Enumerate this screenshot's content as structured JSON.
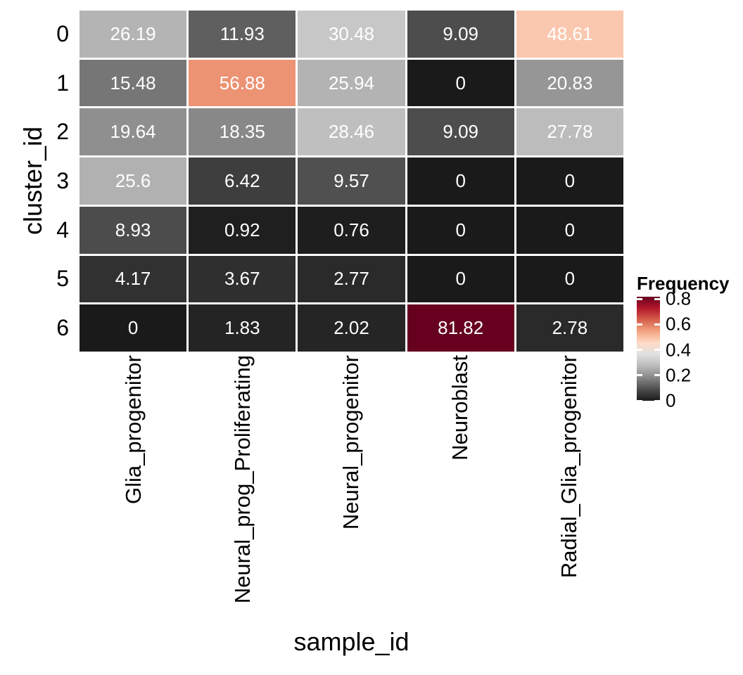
{
  "chart_data": {
    "type": "heatmap",
    "xlabel": "sample_id",
    "ylabel": "cluster_id",
    "columns": [
      "Glia_progenitor",
      "Neural_prog_Proliferating",
      "Neural_progenitor",
      "Neuroblast",
      "Radial_Glia_progenitor"
    ],
    "rows": [
      "0",
      "1",
      "2",
      "3",
      "4",
      "5",
      "6"
    ],
    "values": [
      [
        26.19,
        11.93,
        30.48,
        9.09,
        48.61
      ],
      [
        15.48,
        56.88,
        25.94,
        0,
        20.83
      ],
      [
        19.64,
        18.35,
        28.46,
        9.09,
        27.78
      ],
      [
        25.6,
        6.42,
        9.57,
        0,
        0
      ],
      [
        8.93,
        0.92,
        0.76,
        0,
        0
      ],
      [
        4.17,
        3.67,
        2.77,
        0,
        0
      ],
      [
        0,
        1.83,
        2.02,
        81.82,
        2.78
      ]
    ],
    "legend": {
      "title": "Frequency",
      "tick_labels": [
        "0.8",
        "0.6",
        "0.4",
        "0.2",
        "0"
      ],
      "tick_values": [
        0.8,
        0.6,
        0.4,
        0.2,
        0
      ],
      "domain": [
        0,
        0.8182
      ],
      "position": "right"
    },
    "palette": [
      "#1A1A1A",
      "#4D4D4D",
      "#878787",
      "#BABABA",
      "#E0E0E0",
      "#FDDBC7",
      "#F4A582",
      "#D6604D",
      "#B2182B",
      "#67001F"
    ],
    "colors": {
      "background": "#FFFFFF",
      "cell_text": "#FFFFFF",
      "axis_text": "#000000",
      "cell_border": "#FFFFFF"
    },
    "grid": false,
    "value_unit": "percent"
  }
}
